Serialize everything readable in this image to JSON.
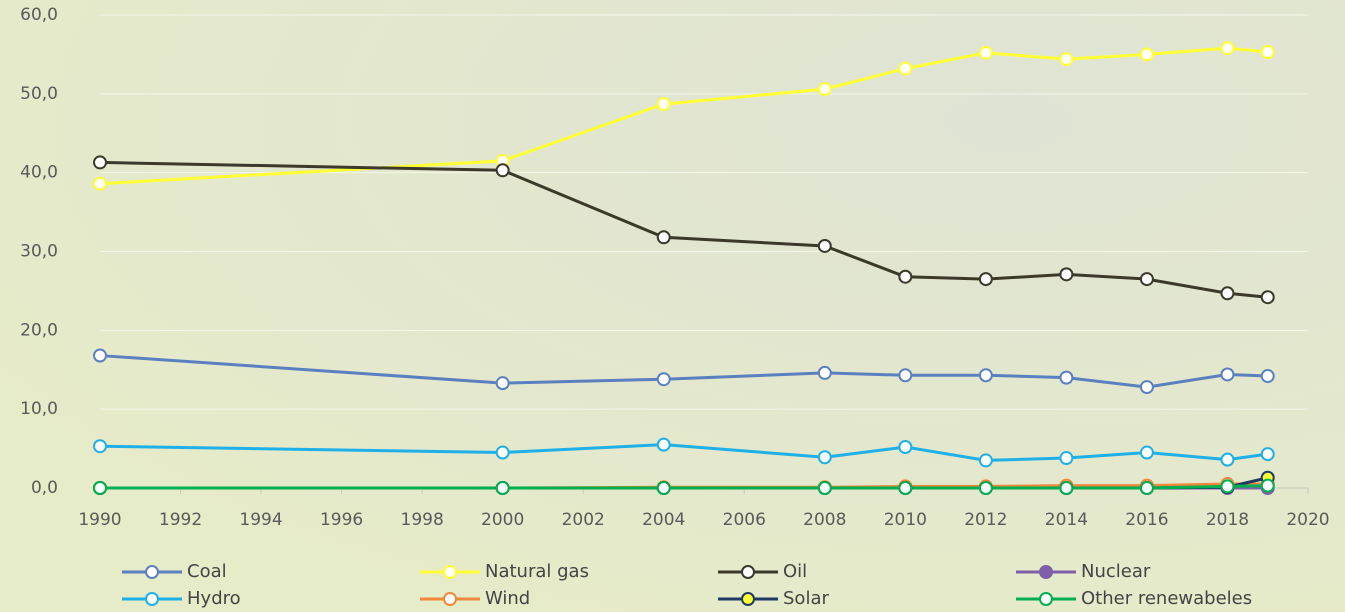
{
  "chart_data": {
    "type": "line",
    "x": [
      1990,
      2000,
      2004,
      2008,
      2010,
      2012,
      2014,
      2016,
      2018,
      2019
    ],
    "xlim": [
      1990,
      2020
    ],
    "xticks": [
      1990,
      1992,
      1994,
      1996,
      1998,
      2000,
      2002,
      2004,
      2006,
      2008,
      2010,
      2012,
      2014,
      2016,
      2018,
      2020
    ],
    "ylim": [
      0,
      60
    ],
    "yticks": [
      {
        "value": 0,
        "label": "0,0"
      },
      {
        "value": 10,
        "label": "10,0"
      },
      {
        "value": 20,
        "label": "20,0"
      },
      {
        "value": 30,
        "label": "30,0"
      },
      {
        "value": 40,
        "label": "40,0"
      },
      {
        "value": 50,
        "label": "50,0"
      },
      {
        "value": 60,
        "label": "60,0"
      }
    ],
    "grid": true,
    "legend": "bottom",
    "series": [
      {
        "name": "Coal",
        "color": "#5a80c0",
        "values": [
          16.8,
          13.3,
          13.8,
          14.6,
          14.3,
          14.3,
          14.0,
          12.8,
          14.4,
          14.2
        ]
      },
      {
        "name": "Natural gas",
        "color": "#ffff33",
        "values": [
          38.6,
          41.5,
          48.7,
          50.6,
          53.2,
          55.2,
          54.4,
          55.0,
          55.8,
          55.3
        ]
      },
      {
        "name": "Oil",
        "color": "#3b3a2a",
        "values": [
          41.3,
          40.3,
          31.8,
          30.7,
          26.8,
          26.5,
          27.1,
          26.5,
          24.7,
          24.2
        ]
      },
      {
        "name": "Nuclear",
        "color": "#7f5fa8",
        "marker_fill": "#7f5fa8",
        "values": [
          0,
          0,
          0,
          0,
          0,
          0,
          0,
          0,
          0,
          0
        ]
      },
      {
        "name": "Hydro",
        "color": "#1fb0e8",
        "values": [
          5.3,
          4.5,
          5.5,
          3.9,
          5.2,
          3.5,
          3.8,
          4.5,
          3.6,
          4.3
        ]
      },
      {
        "name": "Wind",
        "color": "#f0883c",
        "values": [
          0,
          0,
          0.1,
          0.1,
          0.2,
          0.2,
          0.3,
          0.3,
          0.5,
          0.5
        ]
      },
      {
        "name": "Solar",
        "color": "#1f3864",
        "marker_fill": "#ffff33",
        "values": [
          0,
          0,
          0,
          0,
          0,
          0,
          0,
          0,
          0.1,
          1.3
        ]
      },
      {
        "name": "Other renewabeles",
        "color": "#00b050",
        "values": [
          0,
          0,
          0,
          0,
          0,
          0,
          0,
          0,
          0.2,
          0.3
        ]
      }
    ]
  }
}
